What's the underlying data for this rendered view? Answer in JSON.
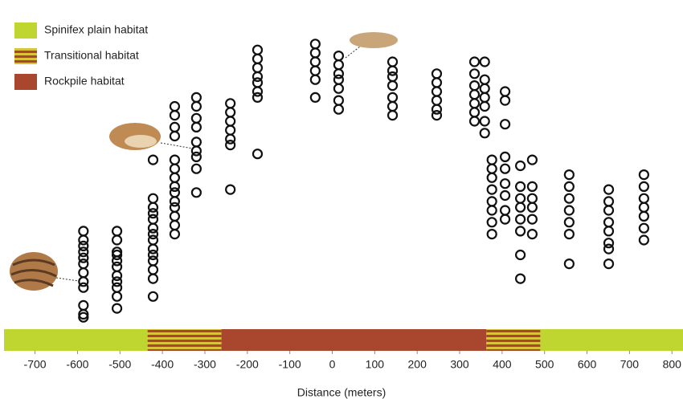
{
  "chart_data": {
    "type": "scatter",
    "x_label": "Distance (meters)",
    "xlim": [
      -773,
      826
    ],
    "xticks": [
      -700,
      -600,
      -500,
      -400,
      -300,
      -200,
      -100,
      0,
      100,
      200,
      300,
      400,
      500,
      600,
      700,
      800
    ],
    "ylim": [
      0,
      100
    ],
    "habitats": [
      {
        "name": "Spinifex plain habitat",
        "color": "#bfd630",
        "start": -773,
        "end": -435
      },
      {
        "name": "Transitional habitat",
        "color": "#d9c33a",
        "stripe_color": "#a8472e",
        "start": -435,
        "end": -261
      },
      {
        "name": "Rockpile habitat",
        "color": "#a8472e",
        "start": -261,
        "end": 363
      },
      {
        "name": "Transitional habitat",
        "color": "#d9c33a",
        "stripe_color": "#a8472e",
        "start": 363,
        "end": 490
      },
      {
        "name": "Spinifex plain habitat",
        "color": "#bfd630",
        "start": 490,
        "end": 826
      }
    ],
    "legend": [
      0,
      1,
      2
    ],
    "series": [
      {
        "color": "#111111",
        "x": [
          -586,
          -586,
          -586,
          -586,
          -586,
          -586,
          -586,
          -586,
          -586,
          -586,
          -586,
          -586,
          -507,
          -507,
          -507,
          -507,
          -507,
          -507,
          -507,
          -507,
          -507,
          -507,
          -507,
          -422,
          -422,
          -422,
          -422,
          -422,
          -422,
          -422,
          -422,
          -422,
          -422,
          -422,
          -422,
          -422,
          -422,
          -371,
          -371,
          -371,
          -371,
          -371,
          -371,
          -371,
          -371,
          -371,
          -371,
          -371,
          -371,
          -371,
          -371,
          -320,
          -320,
          -320,
          -320,
          -320,
          -320,
          -320,
          -320,
          -320,
          -240,
          -240,
          -240,
          -240,
          -240,
          -240,
          -240,
          -176,
          -176,
          -176,
          -176,
          -176,
          -176,
          -176,
          -176,
          -40,
          -40,
          -40,
          -40,
          -40,
          -40,
          15,
          15,
          15,
          15,
          15,
          15,
          15,
          142,
          142,
          142,
          142,
          142,
          142,
          142,
          246,
          246,
          246,
          246,
          246,
          246,
          335,
          335,
          335,
          335,
          335,
          335,
          335,
          359,
          359,
          359,
          359,
          359,
          359,
          359,
          376,
          376,
          376,
          376,
          376,
          376,
          376,
          376,
          407,
          407,
          407,
          407,
          407,
          407,
          407,
          407,
          407,
          443,
          443,
          443,
          443,
          443,
          443,
          443,
          443,
          471,
          471,
          471,
          471,
          471,
          471,
          558,
          558,
          558,
          558,
          558,
          558,
          558,
          651,
          651,
          651,
          651,
          651,
          651,
          651,
          651,
          734,
          734,
          734,
          734,
          734,
          734,
          734
        ],
        "values": [
          33,
          30,
          28,
          26,
          24,
          22,
          19,
          16,
          14,
          8,
          5,
          4,
          33,
          30,
          26,
          25,
          23,
          21,
          18,
          16,
          14,
          11,
          7,
          57,
          44,
          41,
          39,
          37,
          34,
          32,
          30,
          27,
          25,
          23,
          20,
          17,
          11,
          75,
          72,
          68,
          65,
          57,
          54,
          51,
          48,
          46,
          43,
          41,
          38,
          35,
          32,
          78,
          75,
          71,
          68,
          63,
          60,
          58,
          54,
          46,
          76,
          73,
          70,
          67,
          64,
          62,
          47,
          94,
          91,
          88,
          85,
          83,
          80,
          78,
          59,
          96,
          93,
          90,
          87,
          84,
          78,
          92,
          89,
          86,
          84,
          81,
          77,
          74,
          90,
          87,
          85,
          82,
          78,
          75,
          72,
          86,
          83,
          80,
          77,
          74,
          72,
          90,
          86,
          82,
          79,
          76,
          73,
          70,
          90,
          84,
          81,
          78,
          75,
          70,
          66,
          57,
          54,
          51,
          47,
          43,
          40,
          36,
          32,
          80,
          77,
          69,
          58,
          54,
          49,
          45,
          40,
          37,
          55,
          48,
          44,
          41,
          37,
          33,
          25,
          17,
          57,
          48,
          44,
          41,
          37,
          32,
          52,
          48,
          44,
          40,
          36,
          32,
          22,
          47,
          43,
          40,
          36,
          33,
          29,
          27,
          22,
          52,
          48,
          44,
          41,
          38,
          34,
          30
        ]
      }
    ]
  }
}
